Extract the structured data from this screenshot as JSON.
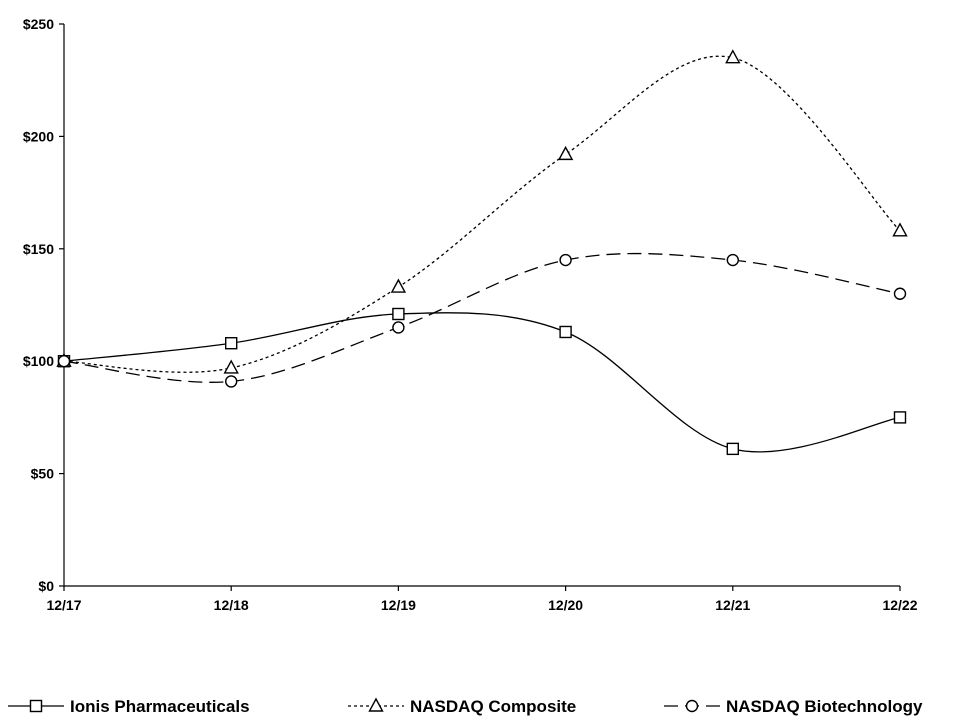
{
  "chart_data": {
    "type": "line",
    "title": "",
    "xlabel": "",
    "ylabel": "",
    "categories": [
      "12/17",
      "12/18",
      "12/19",
      "12/20",
      "12/21",
      "12/22"
    ],
    "ylim": [
      0,
      250
    ],
    "y_ticks": [
      0,
      50,
      100,
      150,
      200,
      250
    ],
    "y_tick_labels": [
      "$0",
      "$50",
      "$100",
      "$150",
      "$200",
      "$250"
    ],
    "grid": false,
    "legend_position": "bottom",
    "series": [
      {
        "name": "Ionis Pharmaceuticals",
        "marker": "square",
        "line_style": "solid",
        "values": [
          100,
          108,
          121,
          113,
          61,
          75
        ]
      },
      {
        "name": "NASDAQ Composite",
        "marker": "triangle",
        "line_style": "dotted",
        "values": [
          100,
          97,
          133,
          192,
          235,
          158
        ]
      },
      {
        "name": "NASDAQ Biotechnology",
        "marker": "circle",
        "line_style": "dashed",
        "values": [
          100,
          91,
          115,
          145,
          145,
          130
        ]
      }
    ]
  }
}
